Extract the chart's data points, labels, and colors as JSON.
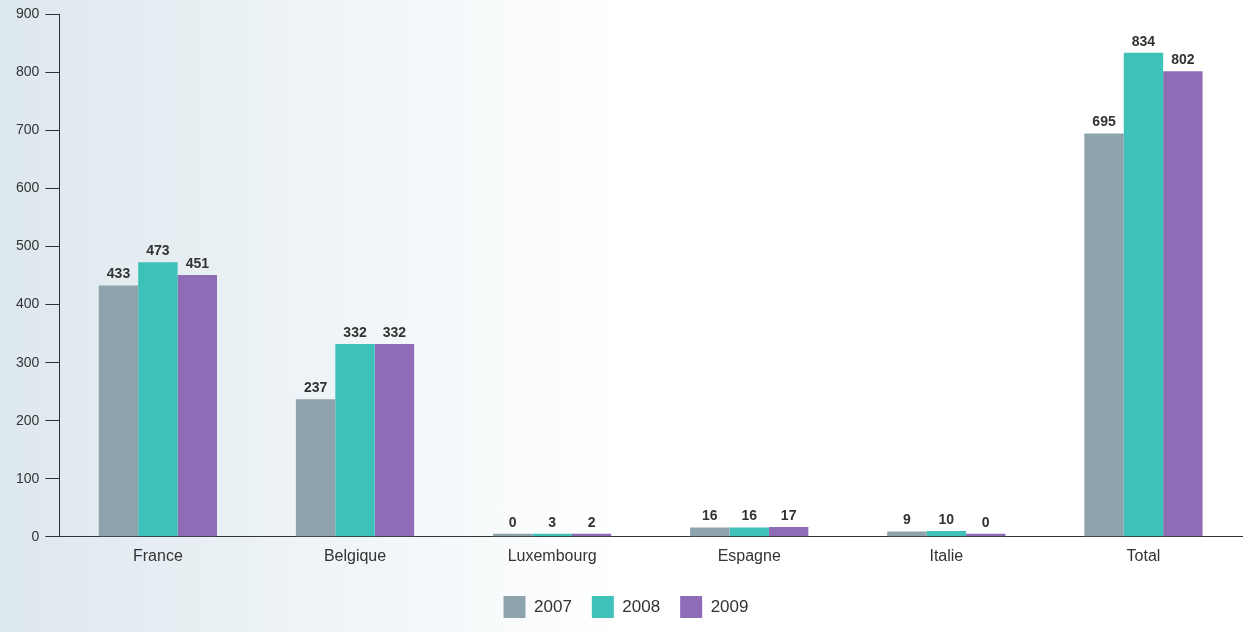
{
  "chart_data": {
    "type": "bar",
    "categories": [
      "France",
      "Belgique",
      "Luxembourg",
      "Espagne",
      "Italie",
      "Total"
    ],
    "series": [
      {
        "name": "2007",
        "color": "#8fa3ad",
        "values": [
          433,
          237,
          0,
          16,
          9,
          695
        ]
      },
      {
        "name": "2008",
        "color": "#3ec1b9",
        "values": [
          473,
          332,
          3,
          16,
          10,
          834
        ]
      },
      {
        "name": "2009",
        "color": "#8f6cb6",
        "values": [
          451,
          332,
          2,
          17,
          0,
          802
        ]
      }
    ],
    "ylim": [
      0,
      900
    ],
    "yticks": [
      0,
      100,
      200,
      300,
      400,
      500,
      600,
      700,
      800,
      900
    ],
    "grid": false,
    "legend": "bottom",
    "data_labels": true
  }
}
